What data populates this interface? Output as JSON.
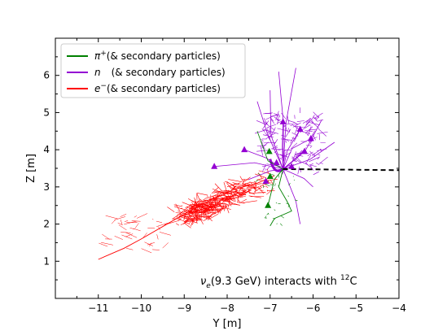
{
  "chart_data": {
    "type": "scatter",
    "xlabel": "Y [m]",
    "ylabel": "Z [m]",
    "xlim": [
      -12,
      -4
    ],
    "ylim": [
      0,
      7
    ],
    "x_ticks": [
      -11,
      -10,
      -9,
      -8,
      -7,
      -6,
      -5,
      -4
    ],
    "x_tick_labels": [
      "−11",
      "−10",
      "−9",
      "−8",
      "−7",
      "−6",
      "−5",
      "−4"
    ],
    "y_ticks": [
      1,
      2,
      3,
      4,
      5,
      6
    ],
    "y_tick_labels": [
      "1",
      "2",
      "3",
      "4",
      "5",
      "6"
    ],
    "grid": false,
    "legend_position": "top-left",
    "annotation": {
      "nu": "ν",
      "nu_sub": "e",
      "mid": "(9.3 GeV) interacts with ",
      "sup": "12",
      "end": "C"
    },
    "series": [
      {
        "name": "π⁺(& secondary particles)",
        "legend_main": "π",
        "legend_sup": "+",
        "legend_rest": "(& secondary particles)",
        "color": "#008000",
        "markers": [
          [
            -7.02,
            3.95
          ],
          [
            -7.05,
            2.5
          ],
          [
            -7.0,
            3.28
          ]
        ]
      },
      {
        "name": "n (& secondary particles)",
        "legend_main": "n",
        "legend_sup": "",
        "legend_rest": "(& secondary particles)",
        "color": "#9400D3",
        "markers": [
          [
            -8.3,
            3.55
          ],
          [
            -7.6,
            4.0
          ],
          [
            -6.7,
            4.75
          ],
          [
            -6.3,
            4.55
          ],
          [
            -6.05,
            4.3
          ],
          [
            -6.2,
            3.95
          ],
          [
            -6.85,
            3.65
          ],
          [
            -6.5,
            3.55
          ],
          [
            -7.1,
            3.15
          ]
        ]
      },
      {
        "name": "e⁻(& secondary particles)",
        "legend_main": "e",
        "legend_sup": "−",
        "legend_rest": "(& secondary particles)",
        "color": "#FF0000",
        "markers": []
      }
    ],
    "neutrino_track": {
      "from": [
        -6.7,
        3.48
      ],
      "to": [
        -4,
        3.45
      ],
      "color": "#000000"
    },
    "vertex": [
      -6.7,
      3.48
    ]
  }
}
